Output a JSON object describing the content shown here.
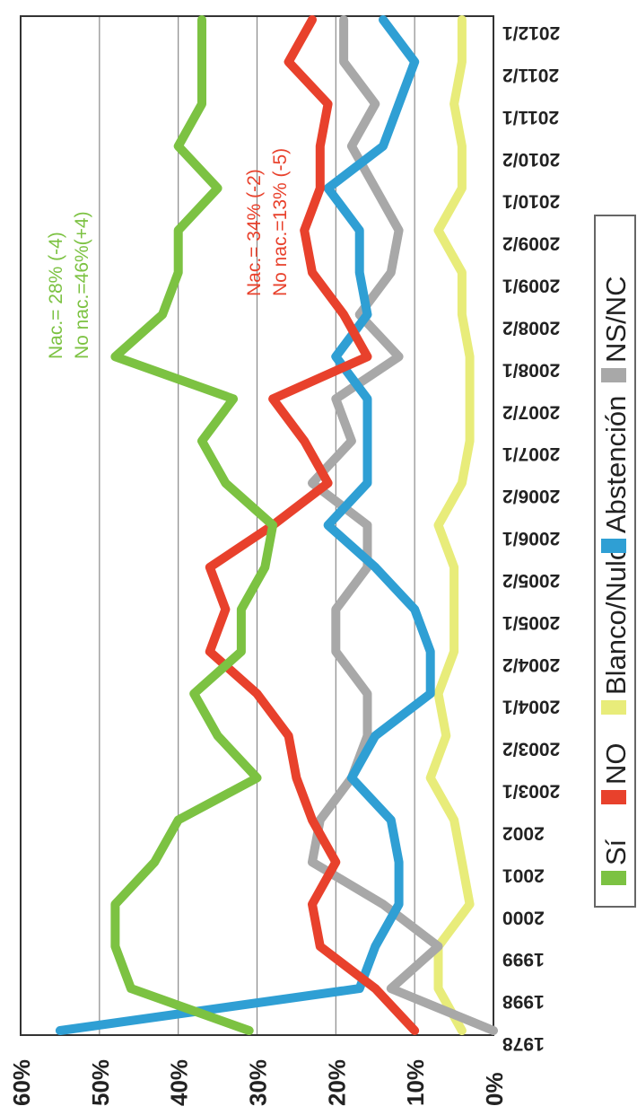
{
  "chart_data": {
    "type": "line",
    "x": [
      "1978",
      "1998",
      "1999",
      "2000",
      "2001",
      "2002",
      "2003/1",
      "2003/2",
      "2004/1",
      "2004/2",
      "2005/1",
      "2005/2",
      "2006/1",
      "2006/2",
      "2007/1",
      "2007/2",
      "2008/1",
      "2008/2",
      "2009/1",
      "2009/2",
      "2010/1",
      "2010/2",
      "2011/1",
      "2011/2",
      "2012/1"
    ],
    "ylim": [
      0,
      60
    ],
    "y_ticks": [
      "0%",
      "10%",
      "20%",
      "30%",
      "40%",
      "50%",
      "60%"
    ],
    "grid": true,
    "legend_position": "right",
    "series": [
      {
        "name": "Sí",
        "color": "#7cc242",
        "values": [
          31,
          46,
          48,
          48,
          43,
          40,
          30,
          35,
          38,
          32,
          32,
          29,
          28,
          34,
          37,
          33,
          48,
          42,
          40,
          40,
          35,
          40,
          37,
          37,
          37
        ]
      },
      {
        "name": "NO",
        "color": "#e8412c",
        "values": [
          10,
          15,
          22,
          23,
          20,
          23,
          25,
          26,
          30,
          36,
          34,
          36,
          28,
          21,
          24,
          28,
          16,
          19,
          23,
          24,
          22,
          22,
          21,
          26,
          23
        ]
      },
      {
        "name": "Blanco/Nulo",
        "color": "#e8ec7a",
        "values": [
          4,
          7,
          7,
          3,
          4,
          5,
          8,
          6,
          7,
          5,
          5,
          5,
          7,
          4,
          3,
          3,
          3,
          4,
          4,
          7,
          4,
          4,
          5,
          4,
          4
        ]
      },
      {
        "name": "Abstención",
        "color": "#2f9fd4",
        "values": [
          55,
          17,
          15,
          12,
          12,
          13,
          18,
          15,
          8,
          8,
          10,
          15,
          21,
          16,
          16,
          16,
          20,
          16,
          17,
          17,
          21,
          14,
          12,
          10,
          14
        ]
      },
      {
        "name": "NS/NC",
        "color": "#a8a8a8",
        "values": [
          0,
          13,
          7,
          14,
          23,
          22,
          18,
          16,
          16,
          20,
          20,
          16,
          16,
          23,
          18,
          20,
          12,
          17,
          13,
          12,
          15,
          18,
          15,
          19,
          19
        ]
      }
    ],
    "annotations": [
      {
        "text": "Nac.= 28% (-4)",
        "color": "#7cc242"
      },
      {
        "text": "No nac.=46%(+4)",
        "color": "#7cc242"
      },
      {
        "text": "Nac.= 34% (-2)",
        "color": "#e8412c"
      },
      {
        "text": "No nac.=13% (-5)",
        "color": "#e8412c"
      }
    ]
  }
}
